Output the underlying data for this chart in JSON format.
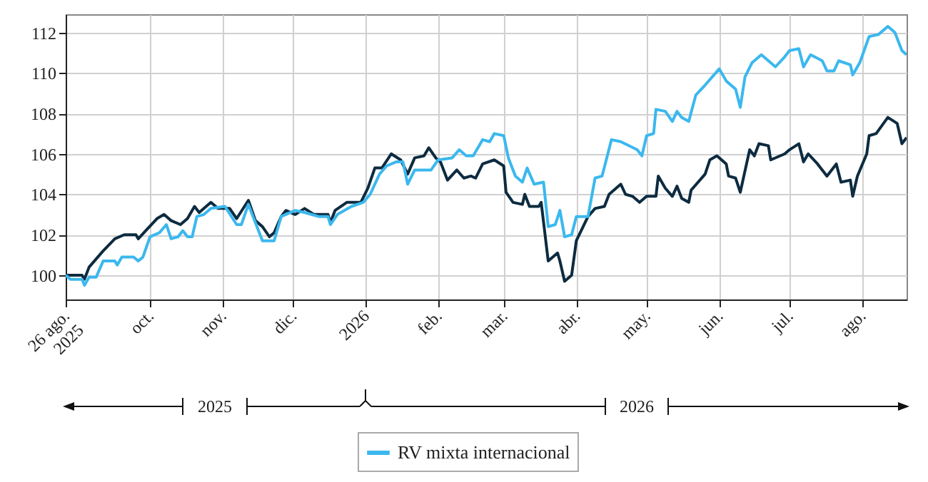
{
  "chart_data": {
    "type": "line",
    "legend": "bottom",
    "grid": true,
    "marker": "none",
    "line_style": "solid",
    "xlim": [
      "2025-08-26",
      "2026-08-20"
    ],
    "ylim": [
      98.8,
      112.9
    ],
    "xticks": [
      {
        "value": "2025-08-26",
        "label": "26 ago.\n2025"
      },
      {
        "value": "2025-10-01",
        "label": "oct."
      },
      {
        "value": "2025-11-01",
        "label": "nov."
      },
      {
        "value": "2025-12-01",
        "label": "dic."
      },
      {
        "value": "2026-01-01",
        "label": "2026"
      },
      {
        "value": "2026-02-01",
        "label": "feb."
      },
      {
        "value": "2026-03-01",
        "label": "mar."
      },
      {
        "value": "2026-04-01",
        "label": "abr."
      },
      {
        "value": "2026-05-01",
        "label": "may."
      },
      {
        "value": "2026-06-01",
        "label": "jun."
      },
      {
        "value": "2026-07-01",
        "label": "jul."
      },
      {
        "value": "2026-08-01",
        "label": "ago."
      }
    ],
    "yticks": [
      100,
      102,
      104,
      106,
      108,
      110,
      112
    ],
    "annotations": [
      "2025",
      "2026"
    ],
    "series": [
      {
        "color": "#0d2b40",
        "x": [
          "2025-08-26",
          "2025-09-02",
          "2025-09-03",
          "2025-09-05",
          "2025-09-11",
          "2025-09-16",
          "2025-09-20",
          "2025-09-25",
          "2025-09-26",
          "2025-09-30",
          "2025-10-04",
          "2025-10-07",
          "2025-10-10",
          "2025-10-14",
          "2025-10-17",
          "2025-10-20",
          "2025-10-22",
          "2025-10-27",
          "2025-10-30",
          "2025-11-04",
          "2025-11-07",
          "2025-11-12",
          "2025-11-15",
          "2025-11-18",
          "2025-11-21",
          "2025-11-23",
          "2025-11-26",
          "2025-11-28",
          "2025-12-02",
          "2025-12-06",
          "2025-12-10",
          "2025-12-16",
          "2025-12-17",
          "2025-12-19",
          "2025-12-24",
          "2025-12-30",
          "2026-01-02",
          "2026-01-05",
          "2026-01-08",
          "2026-01-12",
          "2026-01-16",
          "2026-01-19",
          "2026-01-22",
          "2026-01-26",
          "2026-01-28",
          "2026-01-31",
          "2026-02-02",
          "2026-02-05",
          "2026-02-09",
          "2026-02-12",
          "2026-02-15",
          "2026-02-17",
          "2026-02-20",
          "2026-02-25",
          "2026-03-01",
          "2026-03-02",
          "2026-03-05",
          "2026-03-09",
          "2026-03-10",
          "2026-03-12",
          "2026-03-16",
          "2026-03-17",
          "2026-03-20",
          "2026-03-24",
          "2026-03-25",
          "2026-03-27",
          "2026-03-30",
          "2026-04-01",
          "2026-04-06",
          "2026-04-09",
          "2026-04-13",
          "2026-04-15",
          "2026-04-20",
          "2026-04-22",
          "2026-04-25",
          "2026-04-28",
          "2026-05-01",
          "2026-05-05",
          "2026-05-06",
          "2026-05-09",
          "2026-05-12",
          "2026-05-14",
          "2026-05-16",
          "2026-05-19",
          "2026-05-20",
          "2026-05-26",
          "2026-05-28",
          "2026-05-31",
          "2026-06-04",
          "2026-06-05",
          "2026-06-08",
          "2026-06-10",
          "2026-06-14",
          "2026-06-16",
          "2026-06-18",
          "2026-06-22",
          "2026-06-23",
          "2026-06-29",
          "2026-07-01",
          "2026-07-05",
          "2026-07-07",
          "2026-07-09",
          "2026-07-13",
          "2026-07-17",
          "2026-07-21",
          "2026-07-23",
          "2026-07-27",
          "2026-07-28",
          "2026-07-30",
          "2026-08-03",
          "2026-08-04",
          "2026-08-07",
          "2026-08-12",
          "2026-08-16",
          "2026-08-18",
          "2026-08-20"
        ],
        "values": [
          100.0,
          100.0,
          99.8,
          100.4,
          101.2,
          101.8,
          102.0,
          102.0,
          101.8,
          102.3,
          102.8,
          103.0,
          102.7,
          102.5,
          102.8,
          103.4,
          103.1,
          103.6,
          103.3,
          103.3,
          102.8,
          103.7,
          102.7,
          102.4,
          101.9,
          102.1,
          102.9,
          103.2,
          103.0,
          103.3,
          103.0,
          103.0,
          102.6,
          103.2,
          103.6,
          103.6,
          104.3,
          105.3,
          105.3,
          106.0,
          105.7,
          105.0,
          105.8,
          105.9,
          106.3,
          105.8,
          105.6,
          104.7,
          105.2,
          104.8,
          104.9,
          104.8,
          105.5,
          105.7,
          105.4,
          104.1,
          103.6,
          103.5,
          104.0,
          103.4,
          103.4,
          103.6,
          100.7,
          101.1,
          100.7,
          99.7,
          100.0,
          101.7,
          102.9,
          103.3,
          103.4,
          104.0,
          104.5,
          104.0,
          103.9,
          103.6,
          103.9,
          103.9,
          104.9,
          104.3,
          103.9,
          104.4,
          103.8,
          103.6,
          104.2,
          105.0,
          105.7,
          105.9,
          105.5,
          104.9,
          104.8,
          104.1,
          106.2,
          105.9,
          106.5,
          106.4,
          105.7,
          106.0,
          106.2,
          106.5,
          105.6,
          106.0,
          105.5,
          104.9,
          105.5,
          104.6,
          104.7,
          103.9,
          104.9,
          106.0,
          106.9,
          107.0,
          107.8,
          107.5,
          106.5,
          106.8
        ]
      },
      {
        "name": "RV mixta internacional",
        "color": "#3bb8ee",
        "x": [
          "2025-08-26",
          "2025-08-28",
          "2025-09-02",
          "2025-09-03",
          "2025-09-05",
          "2025-09-08",
          "2025-09-11",
          "2025-09-16",
          "2025-09-17",
          "2025-09-19",
          "2025-09-24",
          "2025-09-26",
          "2025-09-28",
          "2025-10-01",
          "2025-10-05",
          "2025-10-08",
          "2025-10-10",
          "2025-10-13",
          "2025-10-15",
          "2025-10-17",
          "2025-10-19",
          "2025-10-21",
          "2025-10-24",
          "2025-10-27",
          "2025-11-02",
          "2025-11-07",
          "2025-11-09",
          "2025-11-12",
          "2025-11-15",
          "2025-11-18",
          "2025-11-23",
          "2025-11-26",
          "2025-12-02",
          "2025-12-06",
          "2025-12-12",
          "2025-12-16",
          "2025-12-17",
          "2025-12-20",
          "2025-12-26",
          "2025-12-31",
          "2026-01-03",
          "2026-01-07",
          "2026-01-10",
          "2026-01-14",
          "2026-01-17",
          "2026-01-19",
          "2026-01-22",
          "2026-01-29",
          "2026-02-01",
          "2026-02-07",
          "2026-02-10",
          "2026-02-13",
          "2026-02-16",
          "2026-02-20",
          "2026-02-23",
          "2026-02-25",
          "2026-03-01",
          "2026-03-03",
          "2026-03-06",
          "2026-03-09",
          "2026-03-11",
          "2026-03-14",
          "2026-03-18",
          "2026-03-20",
          "2026-03-23",
          "2026-03-25",
          "2026-03-27",
          "2026-03-30",
          "2026-04-01",
          "2026-04-06",
          "2026-04-09",
          "2026-04-12",
          "2026-04-16",
          "2026-04-20",
          "2026-04-27",
          "2026-04-29",
          "2026-05-01",
          "2026-05-04",
          "2026-05-05",
          "2026-05-09",
          "2026-05-12",
          "2026-05-14",
          "2026-05-16",
          "2026-05-19",
          "2026-05-22",
          "2026-05-26",
          "2026-06-01",
          "2026-06-04",
          "2026-06-08",
          "2026-06-10",
          "2026-06-12",
          "2026-06-15",
          "2026-06-19",
          "2026-06-23",
          "2026-06-25",
          "2026-06-29",
          "2026-07-01",
          "2026-07-05",
          "2026-07-07",
          "2026-07-10",
          "2026-07-15",
          "2026-07-17",
          "2026-07-20",
          "2026-07-22",
          "2026-07-27",
          "2026-07-28",
          "2026-07-31",
          "2026-08-04",
          "2026-08-08",
          "2026-08-12",
          "2026-08-15",
          "2026-08-18",
          "2026-08-20"
        ],
        "values": [
          100.0,
          99.8,
          99.8,
          99.5,
          99.9,
          99.9,
          100.7,
          100.7,
          100.5,
          100.9,
          100.9,
          100.7,
          100.9,
          101.9,
          102.1,
          102.5,
          101.8,
          101.9,
          102.2,
          101.9,
          101.9,
          102.9,
          103.0,
          103.3,
          103.4,
          102.5,
          102.5,
          103.5,
          102.6,
          101.7,
          101.7,
          102.9,
          103.2,
          103.1,
          102.9,
          102.9,
          102.5,
          103.0,
          103.4,
          103.6,
          104.0,
          105.0,
          105.4,
          105.6,
          105.6,
          104.5,
          105.2,
          105.2,
          105.7,
          105.8,
          106.2,
          105.9,
          105.9,
          106.7,
          106.6,
          107.0,
          106.9,
          105.8,
          104.9,
          104.6,
          105.3,
          104.5,
          104.6,
          102.4,
          102.5,
          103.2,
          101.9,
          102.0,
          102.9,
          102.9,
          104.8,
          104.9,
          106.7,
          106.6,
          106.2,
          105.9,
          106.9,
          107.0,
          108.2,
          108.1,
          107.6,
          108.1,
          107.8,
          107.6,
          108.9,
          109.4,
          110.2,
          109.6,
          109.2,
          108.3,
          109.8,
          110.5,
          110.9,
          110.5,
          110.3,
          110.8,
          111.1,
          111.2,
          110.3,
          110.9,
          110.6,
          110.1,
          110.1,
          110.6,
          110.4,
          109.9,
          110.5,
          111.8,
          111.9,
          112.3,
          112.0,
          111.1,
          110.9
        ]
      }
    ]
  }
}
